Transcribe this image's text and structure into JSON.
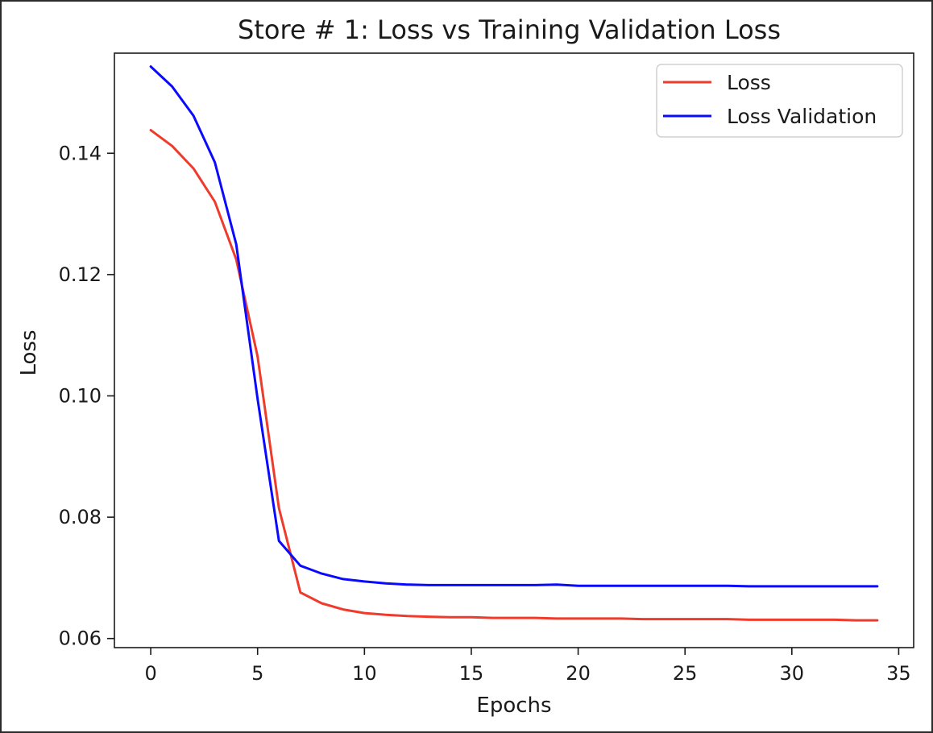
{
  "chart_data": {
    "type": "line",
    "title": "Store # 1: Loss vs Training Validation Loss",
    "xlabel": "Epochs",
    "ylabel": "Loss",
    "xlim": [
      -1.7,
      35.7
    ],
    "ylim": [
      0.0585,
      0.1565
    ],
    "xticks": [
      0,
      5,
      10,
      15,
      20,
      25,
      30,
      35
    ],
    "yticks": [
      0.06,
      0.08,
      0.1,
      0.12,
      0.14
    ],
    "ytick_labels": [
      "0.06",
      "0.08",
      "0.10",
      "0.12",
      "0.14"
    ],
    "grid": false,
    "legend_position": "top-right",
    "x": [
      0,
      1,
      2,
      3,
      4,
      5,
      6,
      7,
      8,
      9,
      10,
      11,
      12,
      13,
      14,
      15,
      16,
      17,
      18,
      19,
      20,
      21,
      22,
      23,
      24,
      25,
      26,
      27,
      28,
      29,
      30,
      31,
      32,
      33,
      34
    ],
    "series": [
      {
        "name": "Loss",
        "color": "#ef3b2c",
        "values": [
          0.1438,
          0.1412,
          0.1375,
          0.132,
          0.1225,
          0.1065,
          0.0815,
          0.0676,
          0.0658,
          0.0648,
          0.0642,
          0.0639,
          0.0637,
          0.0636,
          0.0635,
          0.0635,
          0.0634,
          0.0634,
          0.0634,
          0.0633,
          0.0633,
          0.0633,
          0.0633,
          0.0632,
          0.0632,
          0.0632,
          0.0632,
          0.0632,
          0.0631,
          0.0631,
          0.0631,
          0.0631,
          0.0631,
          0.063,
          0.063
        ]
      },
      {
        "name": "Loss Validation",
        "color": "#0a0aff",
        "values": [
          0.1543,
          0.151,
          0.1462,
          0.1385,
          0.125,
          0.0995,
          0.0761,
          0.072,
          0.0707,
          0.0698,
          0.0694,
          0.0691,
          0.0689,
          0.0688,
          0.0688,
          0.0688,
          0.0688,
          0.0688,
          0.0688,
          0.0689,
          0.0687,
          0.0687,
          0.0687,
          0.0687,
          0.0687,
          0.0687,
          0.0687,
          0.0687,
          0.0686,
          0.0686,
          0.0686,
          0.0686,
          0.0686,
          0.0686,
          0.0686
        ]
      }
    ]
  }
}
